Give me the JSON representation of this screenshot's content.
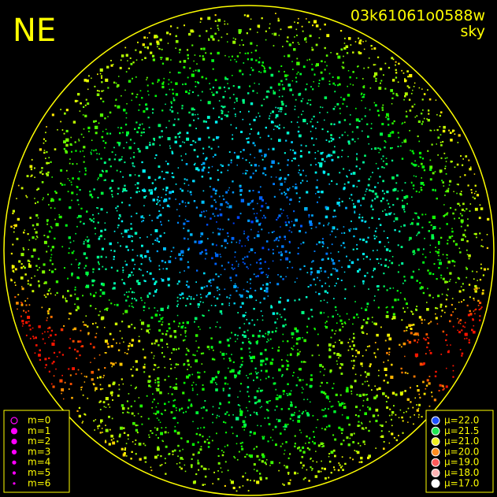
{
  "header": {
    "direction": "NE",
    "frame_id": "03k61061o0588w",
    "map_kind": "sky"
  },
  "magnitude_legend": [
    {
      "label": "m=0"
    },
    {
      "label": "m=1"
    },
    {
      "label": "m=2"
    },
    {
      "label": "m=3"
    },
    {
      "label": "m=4"
    },
    {
      "label": "m=5"
    },
    {
      "label": "m=6"
    }
  ],
  "brightness_legend": [
    {
      "label": "μ=22.0",
      "color": "#1e50ff"
    },
    {
      "label": "μ=21.5",
      "color": "#1ee650"
    },
    {
      "label": "μ=21.0",
      "color": "#f0f01e"
    },
    {
      "label": "μ=20.0",
      "color": "#ff8c1e"
    },
    {
      "label": "μ=19.0",
      "color": "#ff5a5a"
    },
    {
      "label": "μ=18.0",
      "color": "#ffb4b4"
    },
    {
      "label": "μ=17.0",
      "color": "#ffffff"
    }
  ]
}
